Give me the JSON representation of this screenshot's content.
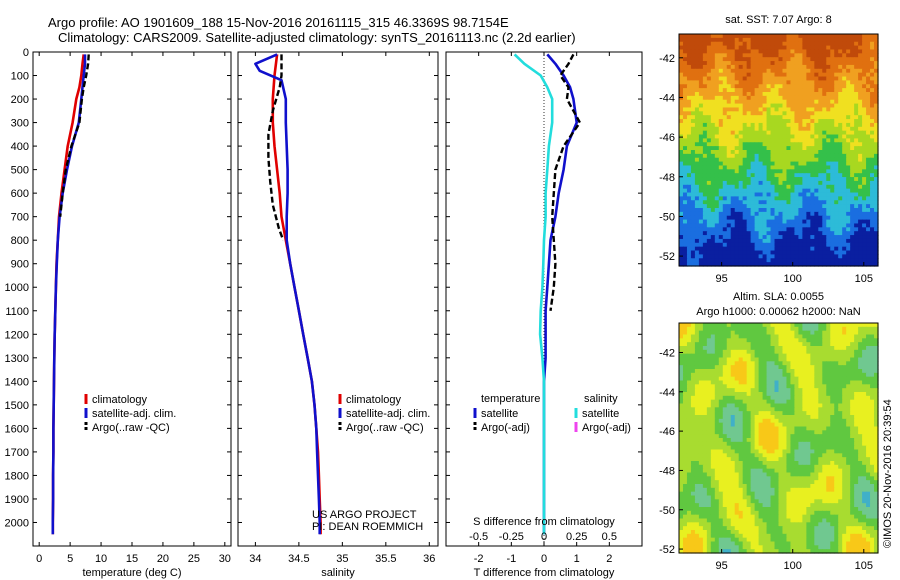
{
  "header": {
    "line1": "Argo profile: AO 1901609_188 15-Nov-2016 20161115_315 46.3369S 98.7154E",
    "line2": "Climatology: CARS2009. Satellite-adjusted climatology: synTS_20161113.nc (2.2d earlier)"
  },
  "side_text": "©IMOS 20-Nov-2016 20:39:54",
  "chart_data": [
    {
      "id": "temperature_profile",
      "type": "line",
      "xlabel": "temperature (deg C)",
      "ylabel": "",
      "xlim": [
        -1,
        31
      ],
      "ylim": [
        2100,
        0
      ],
      "xticks": [
        "0",
        "5",
        "10",
        "15",
        "20",
        "25",
        "30"
      ],
      "yticks": [
        "0",
        "100",
        "200",
        "300",
        "400",
        "500",
        "600",
        "700",
        "800",
        "900",
        "1000",
        "1100",
        "1200",
        "1300",
        "1400",
        "1500",
        "1600",
        "1700",
        "1800",
        "1900",
        "2000"
      ],
      "legend": [
        "climatology",
        "satellite-adj. clim.",
        "Argo(..raw -QC)"
      ],
      "series": [
        {
          "name": "climatology",
          "color": "#e00000",
          "points": [
            [
              7.2,
              10
            ],
            [
              7.0,
              50
            ],
            [
              6.8,
              100
            ],
            [
              6.5,
              150
            ],
            [
              6.0,
              200
            ],
            [
              5.4,
              300
            ],
            [
              4.6,
              400
            ],
            [
              4.1,
              500
            ],
            [
              3.6,
              600
            ],
            [
              3.2,
              700
            ],
            [
              3.0,
              800
            ],
            [
              2.8,
              900
            ],
            [
              2.7,
              1000
            ],
            [
              2.6,
              1100
            ],
            [
              2.5,
              1200
            ],
            [
              2.45,
              1300
            ],
            [
              2.4,
              1400
            ],
            [
              2.35,
              1500
            ],
            [
              2.3,
              1600
            ],
            [
              2.3,
              1700
            ],
            [
              2.25,
              1800
            ],
            [
              2.25,
              1900
            ],
            [
              2.2,
              2000
            ],
            [
              2.2,
              2050
            ]
          ]
        },
        {
          "name": "satellite-adj. clim.",
          "color": "#1010cc",
          "points": [
            [
              7.4,
              10
            ],
            [
              7.4,
              50
            ],
            [
              7.2,
              100
            ],
            [
              7.0,
              150
            ],
            [
              6.8,
              200
            ],
            [
              6.4,
              300
            ],
            [
              5.3,
              400
            ],
            [
              4.5,
              500
            ],
            [
              3.8,
              600
            ],
            [
              3.3,
              700
            ],
            [
              3.0,
              800
            ],
            [
              2.85,
              900
            ],
            [
              2.7,
              1000
            ],
            [
              2.6,
              1100
            ],
            [
              2.5,
              1200
            ],
            [
              2.45,
              1300
            ],
            [
              2.4,
              1400
            ],
            [
              2.35,
              1500
            ],
            [
              2.3,
              1600
            ],
            [
              2.3,
              1700
            ],
            [
              2.25,
              1800
            ],
            [
              2.25,
              1900
            ],
            [
              2.2,
              2000
            ],
            [
              2.2,
              2050
            ]
          ]
        },
        {
          "name": "Argo(..raw -QC)",
          "color": "#000000",
          "dash": true,
          "points": [
            [
              8.0,
              10
            ],
            [
              7.9,
              50
            ],
            [
              7.6,
              100
            ],
            [
              7.2,
              150
            ],
            [
              6.9,
              200
            ],
            [
              6.5,
              300
            ],
            [
              5.2,
              400
            ],
            [
              4.3,
              500
            ],
            [
              3.8,
              600
            ],
            [
              3.4,
              700
            ]
          ]
        }
      ]
    },
    {
      "id": "salinity_profile",
      "type": "line",
      "xlabel": "salinity",
      "ylabel": "",
      "xlim": [
        33.8,
        36.1
      ],
      "ylim": [
        2100,
        0
      ],
      "xticks": [
        "34",
        "34.5",
        "35",
        "35.5",
        "36"
      ],
      "legend": [
        "climatology",
        "satellite-adj. clim.",
        "Argo(..raw -QC)"
      ],
      "annotation": [
        "US ARGO PROJECT",
        "PI: DEAN ROEMMICH"
      ],
      "series": [
        {
          "name": "climatology",
          "color": "#e00000",
          "points": [
            [
              34.25,
              10
            ],
            [
              34.22,
              100
            ],
            [
              34.2,
              200
            ],
            [
              34.2,
              300
            ],
            [
              34.22,
              400
            ],
            [
              34.25,
              500
            ],
            [
              34.28,
              600
            ],
            [
              34.3,
              700
            ],
            [
              34.35,
              800
            ],
            [
              34.4,
              900
            ],
            [
              34.45,
              1000
            ],
            [
              34.5,
              1100
            ],
            [
              34.55,
              1200
            ],
            [
              34.6,
              1300
            ],
            [
              34.65,
              1400
            ],
            [
              34.68,
              1500
            ],
            [
              34.7,
              1600
            ],
            [
              34.72,
              1700
            ],
            [
              34.73,
              1800
            ],
            [
              34.74,
              1900
            ],
            [
              34.75,
              2000
            ],
            [
              34.75,
              2050
            ]
          ]
        },
        {
          "name": "satellite-adj. clim.",
          "color": "#1010cc",
          "points": [
            [
              34.25,
              10
            ],
            [
              34.0,
              50
            ],
            [
              34.05,
              80
            ],
            [
              34.3,
              120
            ],
            [
              34.35,
              200
            ],
            [
              34.35,
              300
            ],
            [
              34.36,
              400
            ],
            [
              34.37,
              500
            ],
            [
              34.37,
              600
            ],
            [
              34.36,
              700
            ],
            [
              34.36,
              800
            ],
            [
              34.4,
              900
            ],
            [
              34.45,
              1000
            ],
            [
              34.5,
              1100
            ],
            [
              34.55,
              1200
            ],
            [
              34.6,
              1300
            ],
            [
              34.65,
              1400
            ],
            [
              34.68,
              1500
            ],
            [
              34.7,
              1600
            ],
            [
              34.71,
              1700
            ],
            [
              34.72,
              1800
            ],
            [
              34.73,
              1900
            ],
            [
              34.74,
              2000
            ],
            [
              34.74,
              2050
            ]
          ]
        },
        {
          "name": "Argo(..raw -QC)",
          "color": "#000000",
          "dash": true,
          "points": [
            [
              34.3,
              10
            ],
            [
              34.3,
              100
            ],
            [
              34.28,
              150
            ],
            [
              34.2,
              250
            ],
            [
              34.15,
              350
            ],
            [
              34.15,
              450
            ],
            [
              34.17,
              550
            ],
            [
              34.2,
              650
            ],
            [
              34.27,
              750
            ],
            [
              34.32,
              800
            ]
          ]
        }
      ]
    },
    {
      "id": "difference_profile",
      "type": "line",
      "xlabel": "T difference from climatology",
      "xlabel_top": "S difference from climatology",
      "xlim": [
        -3,
        3
      ],
      "ylim": [
        2100,
        0
      ],
      "xticks": [
        "-2",
        "-1",
        "0",
        "1",
        "2"
      ],
      "xticks_top": [
        "-0.5",
        "-0.25",
        "0",
        "0.25",
        "0.5"
      ],
      "legend_titles": [
        "temperature",
        "salinity"
      ],
      "legend": [
        [
          "satellite",
          "Argo(-adj)"
        ],
        [
          "satellite",
          "Argo(-adj)"
        ]
      ],
      "series": [
        {
          "name": "satellite",
          "group": "temperature",
          "color": "#1010cc",
          "points": [
            [
              0.1,
              10
            ],
            [
              0.35,
              50
            ],
            [
              0.6,
              100
            ],
            [
              0.8,
              150
            ],
            [
              0.9,
              200
            ],
            [
              1.0,
              300
            ],
            [
              0.7,
              400
            ],
            [
              0.6,
              500
            ],
            [
              0.45,
              600
            ],
            [
              0.35,
              700
            ],
            [
              0.2,
              800
            ],
            [
              0.15,
              900
            ],
            [
              0.1,
              1000
            ],
            [
              0.05,
              1100
            ],
            [
              0.05,
              1200
            ],
            [
              0.05,
              1300
            ],
            [
              0.0,
              1400
            ],
            [
              0.0,
              1500
            ],
            [
              0.0,
              1600
            ],
            [
              0.0,
              1700
            ],
            [
              0.0,
              1800
            ],
            [
              0.0,
              1900
            ],
            [
              0.0,
              2000
            ],
            [
              0.0,
              2050
            ]
          ]
        },
        {
          "name": "Argo(-adj)",
          "group": "temperature",
          "color": "#000000",
          "dash": true,
          "points": [
            [
              0.9,
              10
            ],
            [
              0.75,
              50
            ],
            [
              0.5,
              100
            ],
            [
              0.75,
              150
            ],
            [
              0.7,
              200
            ],
            [
              1.1,
              300
            ],
            [
              0.6,
              400
            ],
            [
              0.35,
              500
            ],
            [
              0.3,
              600
            ],
            [
              0.25,
              700
            ],
            [
              0.3,
              800
            ],
            [
              0.35,
              900
            ],
            [
              0.3,
              1000
            ],
            [
              0.2,
              1100
            ]
          ]
        },
        {
          "name": "satellite",
          "group": "salinity",
          "color": "#22dddd",
          "points": [
            [
              -0.9,
              10
            ],
            [
              -0.6,
              50
            ],
            [
              -0.1,
              100
            ],
            [
              0.1,
              150
            ],
            [
              0.25,
              200
            ],
            [
              0.25,
              300
            ],
            [
              0.15,
              400
            ],
            [
              0.1,
              500
            ],
            [
              0.05,
              600
            ],
            [
              0.05,
              700
            ],
            [
              0.0,
              800
            ],
            [
              -0.02,
              900
            ],
            [
              -0.05,
              1000
            ],
            [
              -0.1,
              1100
            ],
            [
              -0.12,
              1200
            ],
            [
              -0.05,
              1300
            ],
            [
              0.0,
              1400
            ],
            [
              0.0,
              1500
            ],
            [
              0.0,
              1600
            ],
            [
              0.0,
              1700
            ],
            [
              0.0,
              1800
            ],
            [
              0.0,
              1900
            ],
            [
              0.0,
              2000
            ],
            [
              0.0,
              2050
            ]
          ]
        }
      ]
    },
    {
      "id": "sat_sst_map",
      "type": "heatmap",
      "title": "sat. SST: 7.07 Argo: 8",
      "xlim": [
        92,
        106
      ],
      "ylim": [
        -52.5,
        -40.8
      ],
      "xticks": [
        "95",
        "100",
        "105"
      ],
      "yticks": [
        "-42",
        "-44",
        "-46",
        "-48",
        "-50",
        "-52"
      ],
      "colors": [
        "#0a1fa0",
        "#1a6ee0",
        "#2dbbd8",
        "#34c04a",
        "#a8d820",
        "#f0e020",
        "#f0a020",
        "#e07010",
        "#c04a0a"
      ]
    },
    {
      "id": "altim_sla_map",
      "type": "heatmap",
      "title": "Altim. SLA: 0.0055",
      "subtitle": "Argo h1000: 0.00062 h2000: NaN",
      "xlim": [
        92,
        106
      ],
      "ylim": [
        -52.2,
        -40.5
      ],
      "xticks": [
        "95",
        "100",
        "105"
      ],
      "yticks": [
        "-42",
        "-44",
        "-46",
        "-48",
        "-50",
        "-52"
      ],
      "colors": [
        "#40b0c8",
        "#70c890",
        "#60c840",
        "#a8dc30",
        "#e8f020",
        "#f8c818"
      ]
    }
  ]
}
